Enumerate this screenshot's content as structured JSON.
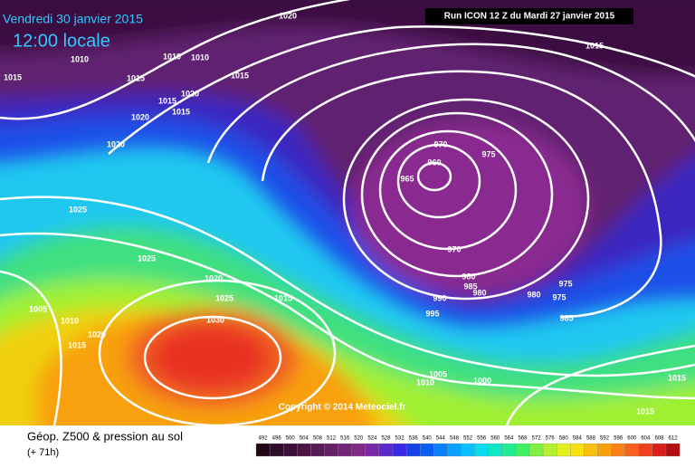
{
  "header": {
    "date": "Vendredi 30 janvier 2015",
    "time": "12:00 locale",
    "run": "Run ICON 12 Z du Mardi 27 janvier 2015"
  },
  "copyright": "Copyright © 2014 Meteociel.fr",
  "footer": {
    "title": "Géop. Z500 & pression au sol",
    "lead": "(+ 71h)"
  },
  "scale": {
    "labels": [
      492,
      496,
      500,
      504,
      508,
      512,
      516,
      520,
      524,
      528,
      532,
      536,
      540,
      544,
      548,
      552,
      556,
      560,
      564,
      568,
      572,
      576,
      580,
      584,
      588,
      592,
      596,
      600,
      604,
      608,
      612
    ]
  },
  "isobars": {
    "labels": [
      1020,
      1015,
      1010,
      1010,
      1010,
      1015,
      1015,
      1015,
      1020,
      1015,
      1015,
      1020,
      1020,
      1025,
      1025,
      1020,
      1025,
      1015,
      1005,
      1010,
      1020,
      1015,
      1030,
      970,
      960,
      965,
      975,
      970,
      980,
      985,
      980,
      990,
      995,
      980,
      975,
      975,
      985,
      1005,
      1010,
      1000,
      1015,
      1015
    ]
  }
}
